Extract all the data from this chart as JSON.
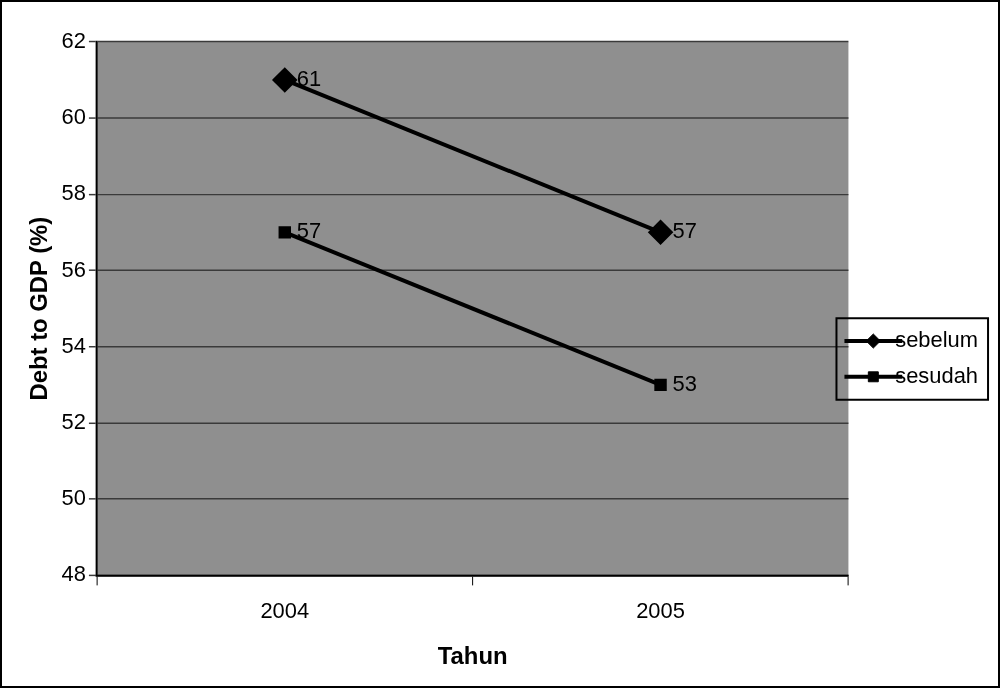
{
  "chart_data": {
    "type": "line",
    "xlabel": "Tahun",
    "ylabel": "Debt to GDP (%)",
    "categories": [
      "2004",
      "2005"
    ],
    "series": [
      {
        "name": "sebelum",
        "color": "#000000",
        "values": [
          61,
          57
        ],
        "marker": "diamond"
      },
      {
        "name": "sesudah",
        "color": "#000000",
        "values": [
          57,
          53
        ],
        "marker": "square"
      }
    ],
    "ylim": [
      48,
      62
    ],
    "yticks": [
      48,
      50,
      52,
      54,
      56,
      58,
      60,
      62
    ],
    "grid": "y",
    "legend": "right",
    "data_labels": true
  }
}
